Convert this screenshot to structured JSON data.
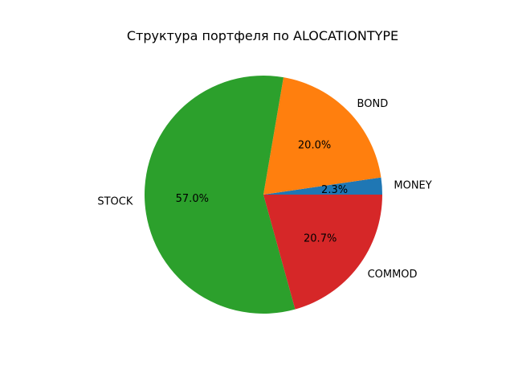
{
  "chart_data": {
    "type": "pie",
    "title": "Структура портфеля по ALOCATIONTYPE",
    "categories": [
      "MONEY",
      "BOND",
      "STOCK",
      "COMMOD"
    ],
    "values": [
      2.3,
      20.0,
      57.0,
      20.7
    ],
    "value_labels": [
      "2.3%",
      "20.0%",
      "57.0%",
      "20.7%"
    ],
    "colors": [
      "#1f77b4",
      "#ff7f0e",
      "#2ca02c",
      "#d62728"
    ],
    "start_angle_deg": 0,
    "direction": "counterclockwise",
    "legend": "none"
  }
}
